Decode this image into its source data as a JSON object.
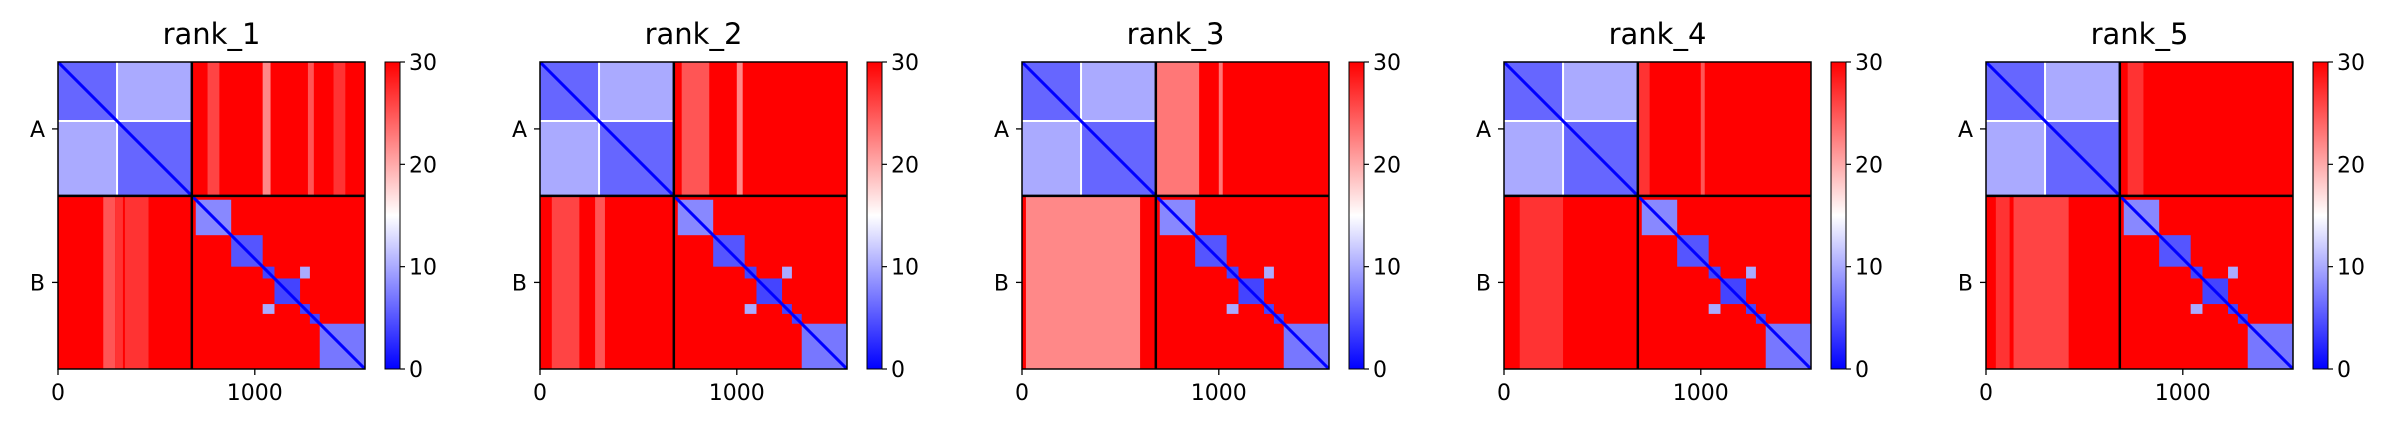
{
  "chart_data": {
    "type": "heatmap",
    "colormap": {
      "low": "#0000ff",
      "mid": "#ffffff",
      "high": "#ff0000"
    },
    "color_range": [
      0,
      30
    ],
    "colorbar_ticks": [
      0,
      10,
      20,
      30
    ],
    "x_ticks": [
      0,
      1000
    ],
    "x_range": [
      0,
      1560
    ],
    "y_range": [
      0,
      1560
    ],
    "chain_boundary": 680,
    "chains": [
      {
        "label": "A",
        "range": [
          0,
          680
        ]
      },
      {
        "label": "B",
        "range": [
          680,
          1560
        ]
      }
    ],
    "low_error_blocks": [
      [
        0,
        300,
        0,
        300,
        6
      ],
      [
        300,
        680,
        300,
        680,
        6
      ],
      [
        0,
        300,
        300,
        680,
        10
      ],
      [
        300,
        680,
        0,
        300,
        10
      ],
      [
        700,
        880,
        700,
        880,
        8
      ],
      [
        880,
        1040,
        880,
        1040,
        5
      ],
      [
        1040,
        1100,
        1040,
        1100,
        4
      ],
      [
        1230,
        1280,
        1230,
        1280,
        4
      ],
      [
        1040,
        1100,
        1230,
        1280,
        10
      ],
      [
        1230,
        1280,
        1040,
        1100,
        10
      ],
      [
        1100,
        1230,
        1100,
        1230,
        4
      ],
      [
        1280,
        1330,
        1280,
        1330,
        4
      ],
      [
        1330,
        1560,
        1330,
        1560,
        7
      ]
    ],
    "panels": [
      {
        "title": "rank_1",
        "ab_stripes": [
          [
            760,
            820,
            26
          ],
          [
            1040,
            1080,
            22
          ],
          [
            1270,
            1300,
            25
          ],
          [
            1400,
            1460,
            27
          ]
        ],
        "ba_stripes": [
          [
            230,
            290,
            25
          ],
          [
            290,
            330,
            27
          ],
          [
            340,
            460,
            27
          ]
        ]
      },
      {
        "title": "rank_2",
        "ab_stripes": [
          [
            720,
            860,
            25
          ],
          [
            1000,
            1030,
            22
          ]
        ],
        "ba_stripes": [
          [
            60,
            200,
            26
          ],
          [
            280,
            330,
            25
          ]
        ]
      },
      {
        "title": "rank_3",
        "ab_stripes": [
          [
            680,
            900,
            23
          ],
          [
            1000,
            1020,
            23
          ]
        ],
        "ba_stripes": [
          [
            20,
            600,
            22
          ]
        ]
      },
      {
        "title": "rank_4",
        "ab_stripes": [
          [
            680,
            740,
            27
          ],
          [
            1000,
            1020,
            25
          ]
        ],
        "ba_stripes": [
          [
            80,
            300,
            27
          ]
        ]
      },
      {
        "title": "rank_5",
        "ab_stripes": [
          [
            720,
            800,
            27
          ]
        ],
        "ba_stripes": [
          [
            140,
            420,
            26
          ],
          [
            50,
            120,
            27
          ]
        ]
      }
    ]
  }
}
